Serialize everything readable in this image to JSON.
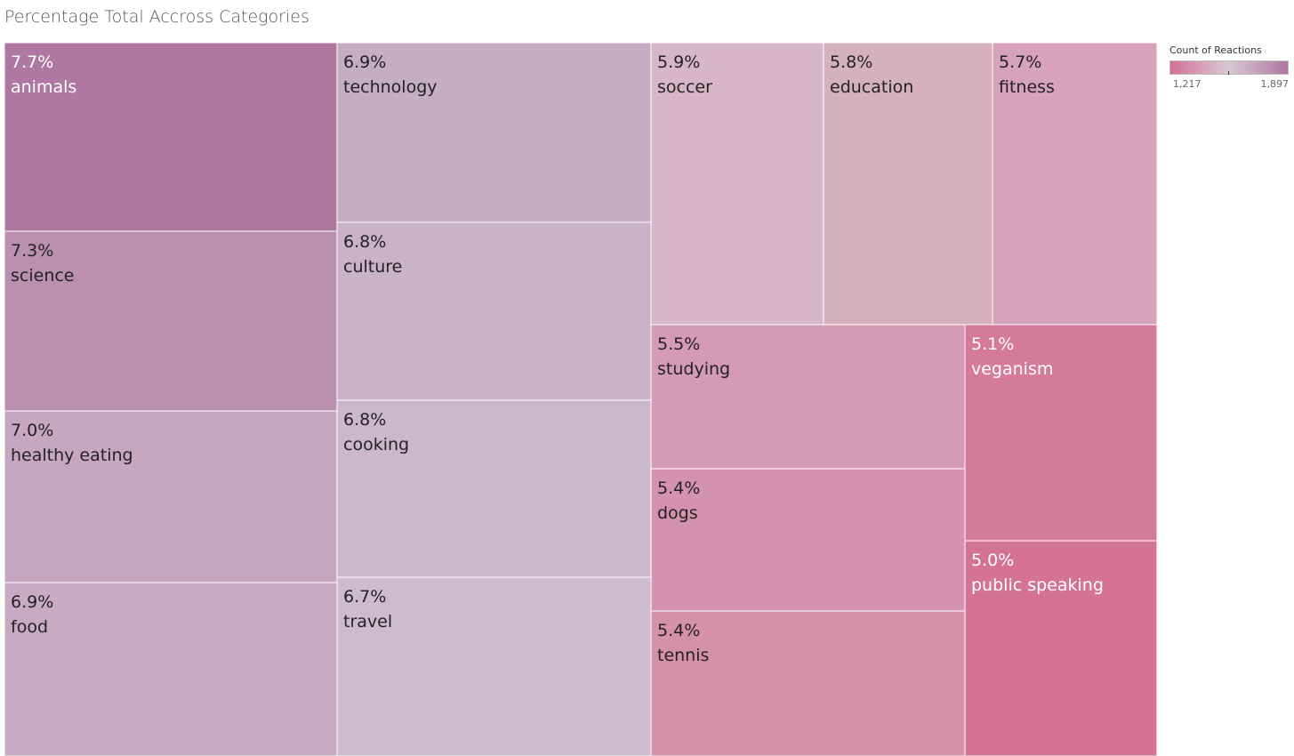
{
  "title": "Percentage Total Accross Categories",
  "legend": {
    "title": "Count of Reactions",
    "min_label": "1,217",
    "max_label": "1,897",
    "low_color": "#d5709a",
    "mid_color": "#d8c8d2",
    "high_color": "#ad77a0"
  },
  "chart_data": {
    "type": "treemap",
    "title": "Percentage Total Accross Categories",
    "color_measure": "Count of Reactions",
    "color_range": [
      1217,
      1897
    ],
    "items": [
      {
        "category": "animals",
        "label": "7.7%",
        "value": 7.7,
        "color": "#ae78a0",
        "text_color": "#ffffff"
      },
      {
        "category": "science",
        "label": "7.3%",
        "value": 7.3,
        "color": "#bb90ae",
        "text_color": "#222222"
      },
      {
        "category": "healthy eating",
        "label": "7.0%",
        "value": 7.0,
        "color": "#c7a6bf",
        "text_color": "#222222"
      },
      {
        "category": "food",
        "label": "6.9%",
        "value": 6.9,
        "color": "#c8aac2",
        "text_color": "#222222"
      },
      {
        "category": "technology",
        "label": "6.9%",
        "value": 6.9,
        "color": "#c6aec2",
        "text_color": "#222222"
      },
      {
        "category": "culture",
        "label": "6.8%",
        "value": 6.8,
        "color": "#cab3c6",
        "text_color": "#222222"
      },
      {
        "category": "cooking",
        "label": "6.8%",
        "value": 6.8,
        "color": "#ccb8ca",
        "text_color": "#222222"
      },
      {
        "category": "travel",
        "label": "6.7%",
        "value": 6.7,
        "color": "#cebcce",
        "text_color": "#222222"
      },
      {
        "category": "soccer",
        "label": "5.9%",
        "value": 5.9,
        "color": "#d7b7c5",
        "text_color": "#222222"
      },
      {
        "category": "education",
        "label": "5.8%",
        "value": 5.8,
        "color": "#d5b1c0",
        "text_color": "#222222"
      },
      {
        "category": "fitness",
        "label": "5.7%",
        "value": 5.7,
        "color": "#d6a3b9",
        "text_color": "#222222"
      },
      {
        "category": "studying",
        "label": "5.5%",
        "value": 5.5,
        "color": "#d49bb2",
        "text_color": "#222222"
      },
      {
        "category": "dogs",
        "label": "5.4%",
        "value": 5.4,
        "color": "#d492ac",
        "text_color": "#222222"
      },
      {
        "category": "tennis",
        "label": "5.4%",
        "value": 5.4,
        "color": "#d590aa",
        "text_color": "#222222"
      },
      {
        "category": "veganism",
        "label": "5.1%",
        "value": 5.1,
        "color": "#d57a9b",
        "text_color": "#ffffff"
      },
      {
        "category": "public speaking",
        "label": "5.0%",
        "value": 5.0,
        "color": "#d57396",
        "text_color": "#ffffff"
      }
    ]
  }
}
